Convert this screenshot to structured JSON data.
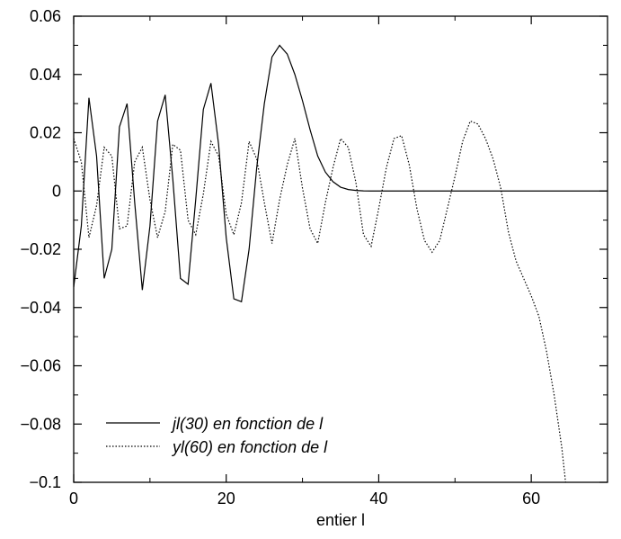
{
  "chart_data": {
    "type": "line",
    "title": "",
    "xlabel": "entier l",
    "ylabel": "",
    "xlim": [
      0,
      70
    ],
    "ylim": [
      -0.1,
      0.06
    ],
    "x_ticks": [
      0,
      20,
      40,
      60
    ],
    "x_tick_labels": [
      "0",
      "20",
      "40",
      "60"
    ],
    "y_ticks": [
      -0.1,
      -0.08,
      -0.06,
      -0.04,
      -0.02,
      0,
      0.02,
      0.04,
      0.06
    ],
    "y_tick_labels": [
      "−0.1",
      "−0.08",
      "−0.06",
      "−0.04",
      "−0.02",
      "0",
      "0.02",
      "0.04",
      "0.06"
    ],
    "grid": false,
    "legend_position": "bottom-left",
    "series": [
      {
        "name": "jl(30) en fonction de l",
        "line_style": "solid",
        "color": "#000000",
        "x": [
          0,
          1,
          2,
          3,
          4,
          5,
          6,
          7,
          8,
          9,
          10,
          11,
          12,
          13,
          14,
          15,
          16,
          17,
          18,
          19,
          20,
          21,
          22,
          23,
          24,
          25,
          26,
          27,
          28,
          29,
          30,
          31,
          32,
          33,
          34,
          35,
          36,
          37,
          38,
          39,
          40,
          45,
          50,
          55,
          60,
          65,
          70
        ],
        "y": [
          -0.033,
          -0.012,
          0.032,
          0.012,
          -0.03,
          -0.02,
          0.022,
          0.03,
          -0.004,
          -0.034,
          -0.012,
          0.024,
          0.033,
          0.004,
          -0.03,
          -0.032,
          -0.003,
          0.028,
          0.037,
          0.016,
          -0.016,
          -0.037,
          -0.038,
          -0.02,
          0.008,
          0.03,
          0.046,
          0.05,
          0.047,
          0.04,
          0.031,
          0.021,
          0.012,
          0.0065,
          0.0032,
          0.0013,
          0.0005,
          0.0002,
          5e-05,
          0.0,
          0.0,
          0.0,
          0.0,
          0.0,
          0.0,
          0.0,
          0.0
        ]
      },
      {
        "name": "yl(60) en fonction de l",
        "line_style": "dotted",
        "color": "#000000",
        "x": [
          0,
          1,
          2,
          3,
          4,
          5,
          6,
          7,
          8,
          9,
          10,
          11,
          12,
          13,
          14,
          15,
          16,
          17,
          18,
          19,
          20,
          21,
          22,
          23,
          24,
          25,
          26,
          27,
          28,
          29,
          30,
          31,
          32,
          33,
          34,
          35,
          36,
          37,
          38,
          39,
          40,
          41,
          42,
          43,
          44,
          45,
          46,
          47,
          48,
          49,
          50,
          51,
          52,
          53,
          54,
          55,
          56,
          57,
          58,
          59,
          60,
          61,
          62,
          63,
          64,
          64.5
        ],
        "y": [
          0.018,
          0.01,
          -0.016,
          -0.005,
          0.015,
          0.012,
          -0.013,
          -0.012,
          0.01,
          0.015,
          -0.003,
          -0.016,
          -0.007,
          0.016,
          0.014,
          -0.01,
          -0.015,
          -0.001,
          0.017,
          0.012,
          -0.008,
          -0.015,
          -0.004,
          0.017,
          0.011,
          -0.004,
          -0.018,
          -0.003,
          0.009,
          0.018,
          0.001,
          -0.013,
          -0.018,
          -0.004,
          0.008,
          0.018,
          0.015,
          0.003,
          -0.015,
          -0.019,
          -0.006,
          0.008,
          0.018,
          0.019,
          0.009,
          -0.006,
          -0.017,
          -0.021,
          -0.017,
          -0.006,
          0.005,
          0.017,
          0.024,
          0.023,
          0.018,
          0.011,
          0.001,
          -0.014,
          -0.024,
          -0.03,
          -0.036,
          -0.043,
          -0.055,
          -0.07,
          -0.088,
          -0.1
        ]
      }
    ]
  }
}
